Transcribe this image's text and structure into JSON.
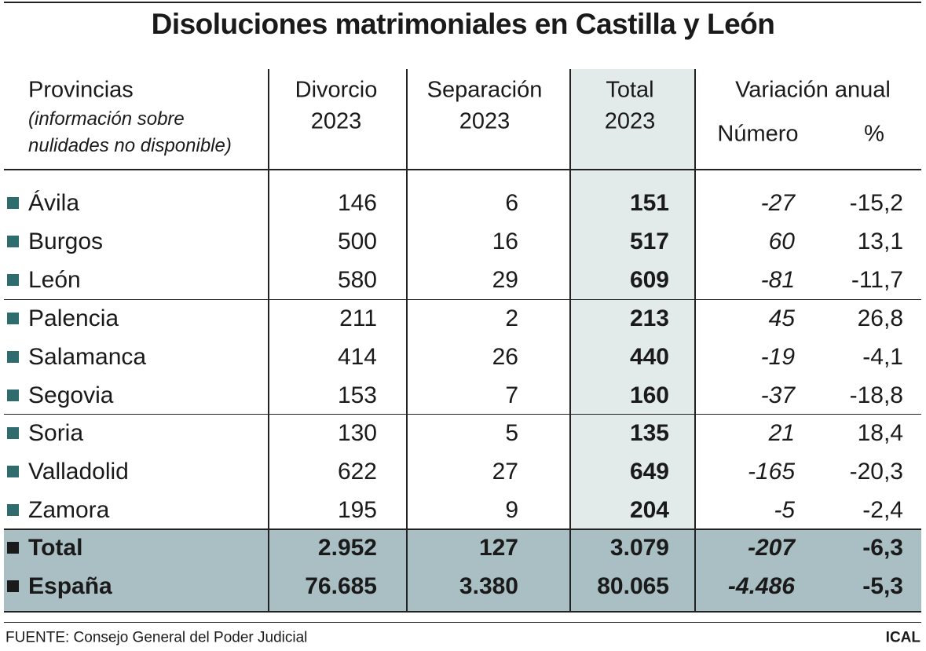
{
  "title": "Disoluciones matrimoniales en Castilla y León",
  "table": {
    "header": {
      "provincias": "Provincias",
      "note": [
        "(información sobre",
        "nulidades no disponible)"
      ],
      "divorcio": [
        "Divorcio",
        "2023"
      ],
      "separacion": [
        "Separación",
        "2023"
      ],
      "total": [
        "Total",
        "2023"
      ],
      "variacion": "Variación anual",
      "numero": "Número",
      "porcentaje": "%"
    },
    "rows": [
      [
        "Ávila",
        "146",
        "6",
        "151",
        "-27",
        "-15,2"
      ],
      [
        "Burgos",
        "500",
        "16",
        "517",
        "60",
        "13,1"
      ],
      [
        "León",
        "580",
        "29",
        "609",
        "-81",
        "-11,7"
      ],
      [
        "Palencia",
        "211",
        "2",
        "213",
        "45",
        "26,8"
      ],
      [
        "Salamanca",
        "414",
        "26",
        "440",
        "-19",
        "-4,1"
      ],
      [
        "Segovia",
        "153",
        "7",
        "160",
        "-37",
        "-18,8"
      ],
      [
        "Soria",
        "130",
        "5",
        "135",
        "21",
        "18,4"
      ],
      [
        "Valladolid",
        "622",
        "27",
        "649",
        "-165",
        "-20,3"
      ],
      [
        "Zamora",
        "195",
        "9",
        "204",
        "-5",
        "-2,4"
      ]
    ],
    "totals": [
      [
        "Total",
        "2.952",
        "127",
        "3.079",
        "-207",
        "-6,3"
      ],
      [
        "España",
        "76.685",
        "3.380",
        "80.065",
        "-4.486",
        "-5,3"
      ]
    ]
  },
  "footer": {
    "source": "FUENTE: Consejo General del Poder Judicial",
    "credit": "ICAL"
  }
}
